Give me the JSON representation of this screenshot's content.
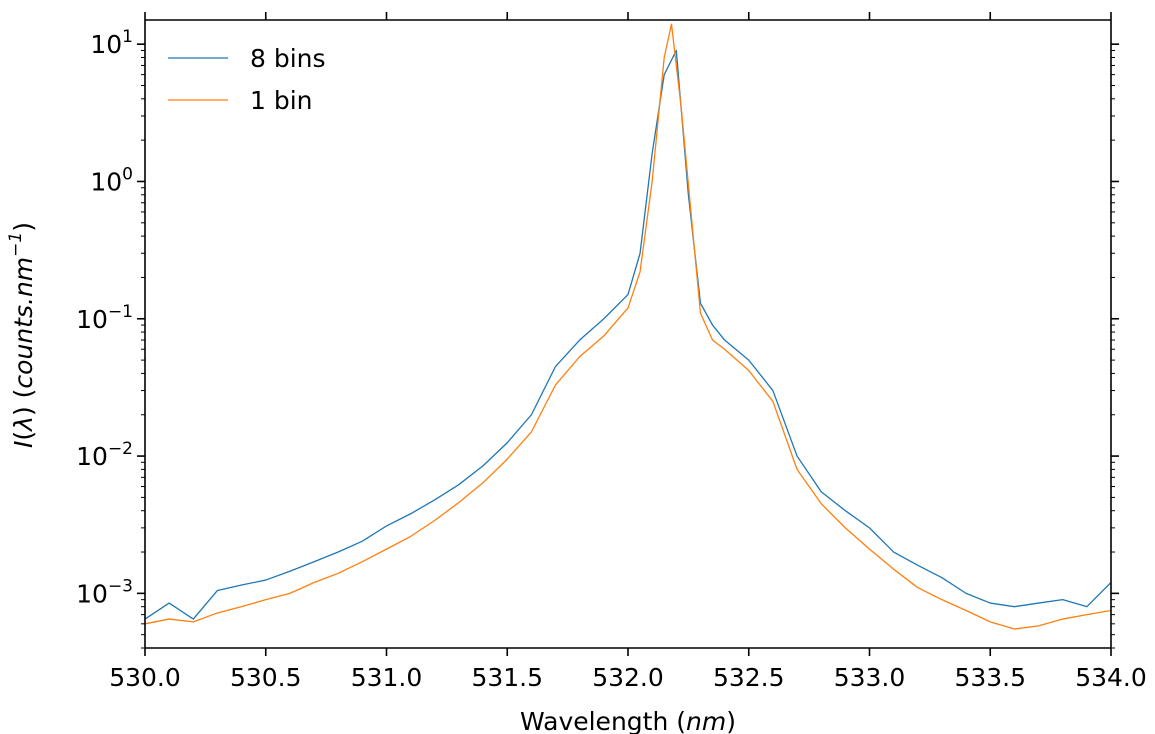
{
  "chart_data": {
    "type": "line",
    "title": "",
    "xlabel_prefix": "Wavelength (",
    "xlabel_unit": "nm",
    "xlabel_suffix": ")",
    "ylabel": "I(λ) (counts.nm⁻¹)",
    "ylabel_func": "I",
    "ylabel_arg": "λ",
    "ylabel_unit": "counts.nm",
    "ylabel_exp": "−1",
    "xlim": [
      530.0,
      534.0
    ],
    "ylim": [
      0.0004,
      15
    ],
    "yscale": "log",
    "grid": false,
    "legend_position": "top-left",
    "x_ticks": [
      "530.0",
      "530.5",
      "531.0",
      "531.5",
      "532.0",
      "532.5",
      "533.0",
      "533.5",
      "534.0"
    ],
    "y_ticks": [
      {
        "value": 0.001,
        "base": "10",
        "exp": "−3"
      },
      {
        "value": 0.01,
        "base": "10",
        "exp": "−2"
      },
      {
        "value": 0.1,
        "base": "10",
        "exp": "−1"
      },
      {
        "value": 1,
        "base": "10",
        "exp": "0"
      },
      {
        "value": 10,
        "base": "10",
        "exp": "1"
      }
    ],
    "series": [
      {
        "name": "8 bins",
        "color": "#1f77b4",
        "points": [
          [
            530.0,
            0.00065
          ],
          [
            530.1,
            0.00085
          ],
          [
            530.2,
            0.00065
          ],
          [
            530.3,
            0.00105
          ],
          [
            530.4,
            0.00115
          ],
          [
            530.5,
            0.00125
          ],
          [
            530.6,
            0.00145
          ],
          [
            530.7,
            0.0017
          ],
          [
            530.8,
            0.002
          ],
          [
            530.9,
            0.0024
          ],
          [
            531.0,
            0.0031
          ],
          [
            531.1,
            0.0038
          ],
          [
            531.2,
            0.0048
          ],
          [
            531.3,
            0.0062
          ],
          [
            531.4,
            0.0085
          ],
          [
            531.5,
            0.0125
          ],
          [
            531.6,
            0.02
          ],
          [
            531.7,
            0.045
          ],
          [
            531.8,
            0.07
          ],
          [
            531.9,
            0.1
          ],
          [
            532.0,
            0.15
          ],
          [
            532.05,
            0.3
          ],
          [
            532.1,
            1.6
          ],
          [
            532.15,
            6.0
          ],
          [
            532.2,
            9.0
          ],
          [
            532.25,
            0.8
          ],
          [
            532.3,
            0.13
          ],
          [
            532.35,
            0.09
          ],
          [
            532.4,
            0.07
          ],
          [
            532.5,
            0.05
          ],
          [
            532.6,
            0.03
          ],
          [
            532.7,
            0.01
          ],
          [
            532.8,
            0.0055
          ],
          [
            532.9,
            0.004
          ],
          [
            533.0,
            0.003
          ],
          [
            533.1,
            0.002
          ],
          [
            533.2,
            0.0016
          ],
          [
            533.3,
            0.0013
          ],
          [
            533.4,
            0.001
          ],
          [
            533.5,
            0.00085
          ],
          [
            533.6,
            0.0008
          ],
          [
            533.7,
            0.00085
          ],
          [
            533.8,
            0.0009
          ],
          [
            533.9,
            0.0008
          ],
          [
            534.0,
            0.0012
          ]
        ]
      },
      {
        "name": "1 bin",
        "color": "#ff7f0e",
        "points": [
          [
            530.0,
            0.0006
          ],
          [
            530.1,
            0.00065
          ],
          [
            530.2,
            0.00062
          ],
          [
            530.3,
            0.00072
          ],
          [
            530.4,
            0.0008
          ],
          [
            530.5,
            0.0009
          ],
          [
            530.6,
            0.001
          ],
          [
            530.7,
            0.0012
          ],
          [
            530.8,
            0.0014
          ],
          [
            530.9,
            0.0017
          ],
          [
            531.0,
            0.0021
          ],
          [
            531.1,
            0.0026
          ],
          [
            531.2,
            0.0034
          ],
          [
            531.3,
            0.0046
          ],
          [
            531.4,
            0.0064
          ],
          [
            531.5,
            0.0095
          ],
          [
            531.6,
            0.015
          ],
          [
            531.7,
            0.033
          ],
          [
            531.8,
            0.053
          ],
          [
            531.9,
            0.075
          ],
          [
            532.0,
            0.12
          ],
          [
            532.05,
            0.22
          ],
          [
            532.1,
            1.0
          ],
          [
            532.15,
            8.0
          ],
          [
            532.18,
            14.0
          ],
          [
            532.22,
            3.5
          ],
          [
            532.27,
            0.4
          ],
          [
            532.3,
            0.11
          ],
          [
            532.35,
            0.07
          ],
          [
            532.4,
            0.06
          ],
          [
            532.5,
            0.042
          ],
          [
            532.6,
            0.025
          ],
          [
            532.7,
            0.008
          ],
          [
            532.8,
            0.0045
          ],
          [
            532.9,
            0.003
          ],
          [
            533.0,
            0.0021
          ],
          [
            533.1,
            0.0015
          ],
          [
            533.2,
            0.0011
          ],
          [
            533.3,
            0.0009
          ],
          [
            533.4,
            0.00075
          ],
          [
            533.5,
            0.00062
          ],
          [
            533.6,
            0.00055
          ],
          [
            533.7,
            0.00058
          ],
          [
            533.8,
            0.00065
          ],
          [
            533.9,
            0.0007
          ],
          [
            534.0,
            0.00075
          ]
        ]
      }
    ]
  }
}
